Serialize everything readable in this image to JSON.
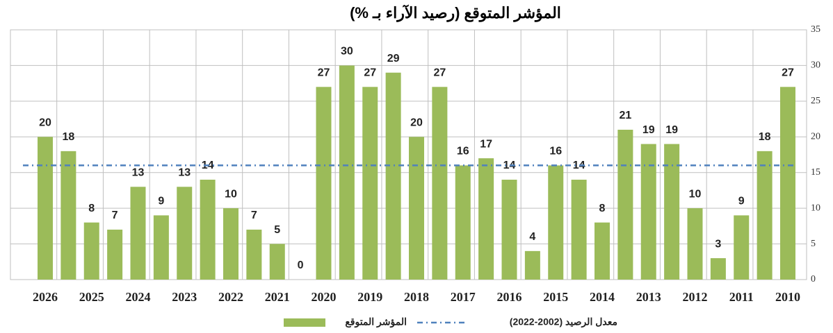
{
  "chart_data": {
    "type": "bar",
    "title": "المؤشر المتوقع (رصيد الآراء بـ %)",
    "reverse_x": true,
    "categories": [
      "2010",
      null,
      "2011",
      null,
      "2012",
      null,
      "2013",
      null,
      "2014",
      null,
      "2015",
      null,
      "2016",
      null,
      "2017",
      null,
      "2018",
      null,
      "2019",
      null,
      "2020",
      null,
      "2021",
      null,
      "2022",
      null,
      "2023",
      null,
      "2024",
      null,
      "2025",
      null,
      "2026"
    ],
    "series": [
      {
        "name": "المؤشر المتوقع",
        "color": "#9bbb59",
        "values": [
          27,
          18,
          9,
          3,
          10,
          19,
          19,
          21,
          8,
          14,
          16,
          4,
          14,
          17,
          16,
          27,
          20,
          29,
          27,
          30,
          27,
          0,
          5,
          7,
          10,
          14,
          13,
          9,
          13,
          7,
          8,
          18,
          20
        ]
      },
      {
        "name": "معدل الرصيد (2002-2022)",
        "color": "#4f81bd",
        "value": 16,
        "style": "dash-dot"
      }
    ],
    "ylim": [
      0,
      35
    ],
    "yticks": [
      0,
      5,
      10,
      15,
      20,
      25,
      30,
      35
    ],
    "grid": true,
    "legend": "bottom"
  }
}
